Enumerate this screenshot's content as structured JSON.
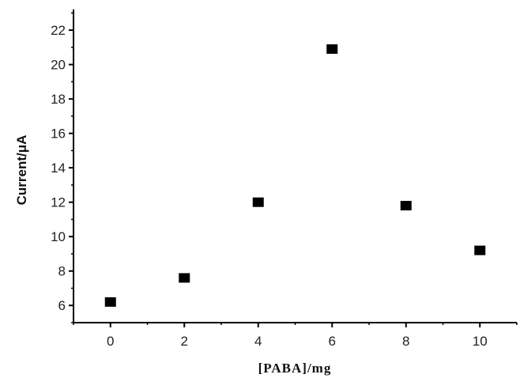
{
  "chart_data": {
    "type": "scatter",
    "title": "",
    "xlabel": "[PABA]/mg",
    "ylabel": "Current/μA",
    "xlim": [
      -1,
      11
    ],
    "ylim": [
      5,
      23.2
    ],
    "x_ticks": [
      0,
      2,
      4,
      6,
      8,
      10
    ],
    "y_ticks": [
      6,
      8,
      10,
      12,
      14,
      16,
      18,
      20,
      22
    ],
    "grid": false,
    "legend": "none",
    "marker": "square",
    "marker_color": "#000000",
    "series": [
      {
        "x": [
          0,
          2,
          4,
          6,
          8,
          10
        ],
        "y": [
          6.2,
          7.6,
          12.0,
          20.9,
          11.8,
          9.2
        ]
      }
    ]
  }
}
